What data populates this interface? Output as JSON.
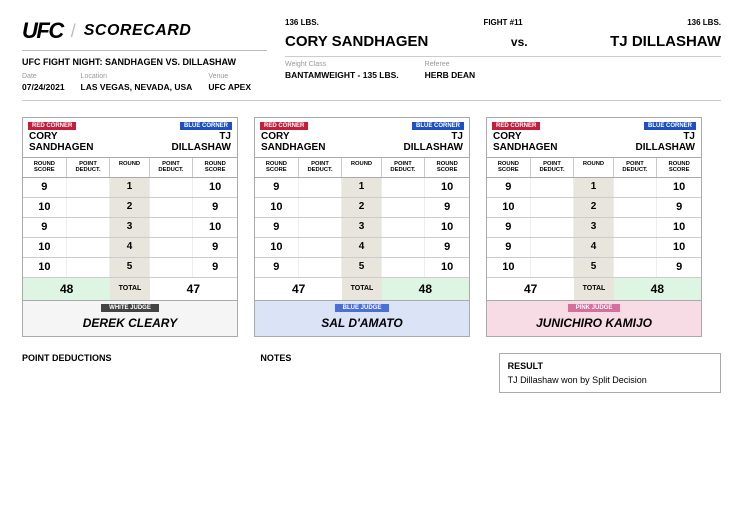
{
  "header": {
    "brand": "UFC",
    "title": "SCORECARD",
    "event": "UFC FIGHT NIGHT: SANDHAGEN VS. DILLASHAW",
    "meta": {
      "date_label": "Date",
      "date": "07/24/2021",
      "location_label": "Location",
      "location": "LAS VEGAS, NEVADA, USA",
      "venue_label": "Venue",
      "venue": "UFC APEX"
    }
  },
  "bout": {
    "weight_left": "136 LBS.",
    "fight_no": "FIGHT #11",
    "weight_right": "136 LBS.",
    "fighter_a": "CORY SANDHAGEN",
    "vs": "vs.",
    "fighter_b": "TJ DILLASHAW",
    "weight_class_label": "Weight Class",
    "weight_class": "BANTAMWEIGHT - 135 LBS.",
    "referee_label": "Referee",
    "referee": "HERB DEAN"
  },
  "labels": {
    "red_corner": "RED CORNER",
    "blue_corner": "BLUE CORNER",
    "round_score": "ROUND SCORE",
    "point_deduct": "POINT DEDUCT.",
    "round": "ROUND",
    "total": "TOTAL",
    "white_judge": "WHITE JUDGE",
    "blue_judge": "BLUE JUDGE",
    "pink_judge": "PINK JUDGE"
  },
  "cards": [
    {
      "red_first": "CORY",
      "red_last": "SANDHAGEN",
      "blue_first": "TJ",
      "blue_last": "DILLASHAW",
      "rows": [
        {
          "a": "9",
          "r": "1",
          "b": "10"
        },
        {
          "a": "10",
          "r": "2",
          "b": "9"
        },
        {
          "a": "9",
          "r": "3",
          "b": "10"
        },
        {
          "a": "10",
          "r": "4",
          "b": "9"
        },
        {
          "a": "10",
          "r": "5",
          "b": "9"
        }
      ],
      "total_a": "48",
      "total_b": "47",
      "winner": "a",
      "badge": "white_judge",
      "badge_class": "white-b",
      "name_bg": "judge-bg-white",
      "judge": "DEREK CLEARY"
    },
    {
      "red_first": "CORY",
      "red_last": "SANDHAGEN",
      "blue_first": "TJ",
      "blue_last": "DILLASHAW",
      "rows": [
        {
          "a": "9",
          "r": "1",
          "b": "10"
        },
        {
          "a": "10",
          "r": "2",
          "b": "9"
        },
        {
          "a": "9",
          "r": "3",
          "b": "10"
        },
        {
          "a": "10",
          "r": "4",
          "b": "9"
        },
        {
          "a": "9",
          "r": "5",
          "b": "10"
        }
      ],
      "total_a": "47",
      "total_b": "48",
      "winner": "b",
      "badge": "blue_judge",
      "badge_class": "blue-b",
      "name_bg": "judge-bg-blue",
      "judge": "SAL D'AMATO"
    },
    {
      "red_first": "CORY",
      "red_last": "SANDHAGEN",
      "blue_first": "TJ",
      "blue_last": "DILLASHAW",
      "rows": [
        {
          "a": "9",
          "r": "1",
          "b": "10"
        },
        {
          "a": "10",
          "r": "2",
          "b": "9"
        },
        {
          "a": "9",
          "r": "3",
          "b": "10"
        },
        {
          "a": "9",
          "r": "4",
          "b": "10"
        },
        {
          "a": "10",
          "r": "5",
          "b": "9"
        }
      ],
      "total_a": "47",
      "total_b": "48",
      "winner": "b",
      "badge": "pink_judge",
      "badge_class": "pink-b",
      "name_bg": "judge-bg-pink",
      "judge": "JUNICHIRO KAMIJO"
    }
  ],
  "bottom": {
    "deductions_title": "POINT DEDUCTIONS",
    "notes_title": "NOTES",
    "result_title": "RESULT",
    "result_text": "TJ Dillashaw won by Split Decision"
  }
}
